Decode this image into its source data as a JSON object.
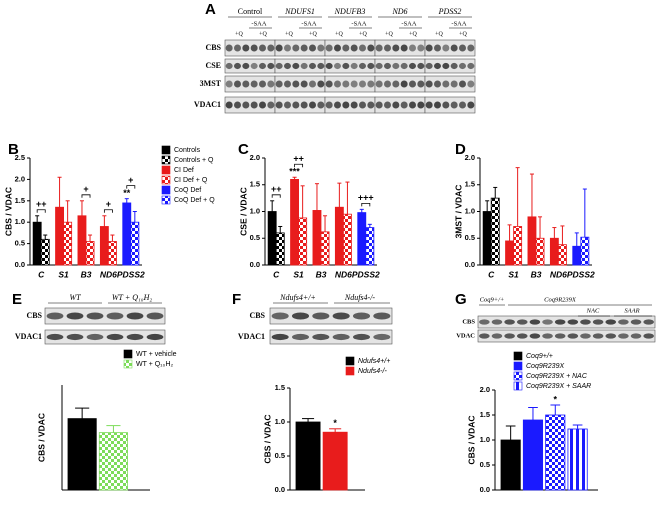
{
  "blots": {
    "A": {
      "panel": "A",
      "groups": [
        {
          "name": "Control",
          "color": "#000000"
        },
        {
          "name": "NDUFS1",
          "color": "#e00000"
        },
        {
          "name": "NDUFB3",
          "color": "#e00000"
        },
        {
          "name": "ND6",
          "color": "#e00000"
        },
        {
          "name": "PDSS2",
          "color": "#1a1aff"
        }
      ],
      "treatment": "-SAA",
      "supplement": "+Q",
      "rows": [
        "CBS",
        "CSE",
        "3MST",
        "VDAC1"
      ]
    },
    "E": {
      "headers": [
        {
          "name": "WT",
          "color": "#3a7a1a"
        },
        {
          "name": "WT + Q₁₀H₂",
          "color": "#3a9a1a"
        }
      ],
      "rows": [
        "CBS",
        "VDAC1"
      ]
    },
    "F": {
      "headers": [
        {
          "name": "Ndufs4+/+",
          "color": "#000000"
        },
        {
          "name": "Ndufs4-/-",
          "color": "#e00000"
        }
      ],
      "rows": [
        "CBS",
        "VDAC1"
      ]
    },
    "G": {
      "headers": [
        {
          "name": "Coq9+/+",
          "color": "#000000"
        },
        {
          "name": "Coq9R239X",
          "color": "#1a1aff"
        },
        {
          "name": "NAC",
          "color": "#000000"
        },
        {
          "name": "SAAR",
          "color": "#000000"
        }
      ],
      "rows": [
        "CBS",
        "VDAC"
      ]
    }
  },
  "chart_data": [
    {
      "panel": "B",
      "type": "bar",
      "y_label": "CBS / VDAC",
      "categories": [
        "C",
        "S1",
        "B3",
        "ND6",
        "PDSS2"
      ],
      "series": [
        {
          "name": "Controls",
          "color": "#000000",
          "pattern": "solid",
          "values": [
            1.0,
            null,
            null,
            null,
            null
          ],
          "errors": [
            0.15,
            null,
            null,
            null,
            null
          ]
        },
        {
          "name": "Controls + Q",
          "color": "#000000",
          "pattern": "checker",
          "values": [
            0.6,
            null,
            null,
            null,
            null
          ],
          "errors": [
            0.1,
            null,
            null,
            null,
            null
          ]
        },
        {
          "name": "CI Def",
          "color": "#e81c1c",
          "pattern": "solid",
          "values": [
            null,
            1.35,
            1.15,
            0.9,
            null
          ],
          "errors": [
            null,
            0.7,
            0.35,
            0.25,
            null
          ]
        },
        {
          "name": "CI Def + Q",
          "color": "#e81c1c",
          "pattern": "checker",
          "values": [
            null,
            1.0,
            0.55,
            0.55,
            null
          ],
          "errors": [
            null,
            0.5,
            0.15,
            0.15,
            null
          ]
        },
        {
          "name": "CoQ Def",
          "color": "#1a1aff",
          "pattern": "solid",
          "values": [
            null,
            null,
            null,
            null,
            1.45
          ],
          "errors": [
            null,
            null,
            null,
            null,
            0.1
          ]
        },
        {
          "name": "CoQ Def + Q",
          "color": "#1a1aff",
          "pattern": "checker",
          "values": [
            null,
            null,
            null,
            null,
            1.0
          ],
          "errors": [
            null,
            null,
            null,
            null,
            0.25
          ]
        }
      ],
      "ylim": [
        0,
        2.5
      ],
      "yticks": [
        {
          "value": 0,
          "label": "0.0"
        },
        {
          "value": 0.5,
          "label": "0.5"
        },
        {
          "value": 1,
          "label": "1.0"
        },
        {
          "value": 1.5,
          "label": "1.5"
        },
        {
          "value": 2,
          "label": "2.0"
        },
        {
          "value": 2.5,
          "label": "2.5"
        }
      ],
      "annotations": [
        "++",
        "+",
        "+",
        "**",
        "+"
      ]
    },
    {
      "panel": "C",
      "type": "bar",
      "y_label": "CSE / VDAC",
      "categories": [
        "C",
        "S1",
        "B3",
        "ND6",
        "PDSS2"
      ],
      "series": [
        {
          "color": "#000000",
          "pattern": "solid",
          "values": [
            1.0,
            null,
            null,
            null,
            null
          ],
          "errors": [
            0.2,
            null,
            null,
            null,
            null
          ]
        },
        {
          "color": "#000000",
          "pattern": "checker",
          "values": [
            0.6,
            null,
            null,
            null,
            null
          ],
          "errors": [
            0.12,
            null,
            null,
            null,
            null
          ]
        },
        {
          "color": "#e81c1c",
          "pattern": "solid",
          "values": [
            null,
            1.6,
            1.02,
            1.08,
            null
          ],
          "errors": [
            null,
            0.04,
            0.5,
            0.45,
            null
          ]
        },
        {
          "color": "#e81c1c",
          "pattern": "checker",
          "values": [
            null,
            0.88,
            0.62,
            0.95,
            null
          ],
          "errors": [
            null,
            0.6,
            0.3,
            0.6,
            null
          ]
        },
        {
          "color": "#1a1aff",
          "pattern": "solid",
          "values": [
            null,
            null,
            null,
            null,
            0.98
          ],
          "errors": [
            null,
            null,
            null,
            null,
            0.06
          ]
        },
        {
          "color": "#1a1aff",
          "pattern": "checker",
          "values": [
            null,
            null,
            null,
            null,
            0.7
          ],
          "errors": [
            null,
            null,
            null,
            null,
            0.06
          ]
        }
      ],
      "ylim": [
        0,
        2
      ],
      "yticks": [
        {
          "value": 0,
          "label": "0.0"
        },
        {
          "value": 0.5,
          "label": "0.5"
        },
        {
          "value": 1,
          "label": "1.0"
        },
        {
          "value": 1.5,
          "label": "1.5"
        },
        {
          "value": 2,
          "label": "2.0"
        }
      ],
      "annotations": [
        "++",
        "***",
        "++",
        "+++"
      ]
    },
    {
      "panel": "D",
      "type": "bar",
      "y_label": "3MST / VDAC",
      "categories": [
        "C",
        "S1",
        "B3",
        "ND6",
        "PDSS2"
      ],
      "series": [
        {
          "color": "#000000",
          "pattern": "solid",
          "values": [
            1.0,
            null,
            null,
            null,
            null
          ],
          "errors": [
            0.2,
            null,
            null,
            null,
            null
          ]
        },
        {
          "color": "#000000",
          "pattern": "checker",
          "values": [
            1.25,
            null,
            null,
            null,
            null
          ],
          "errors": [
            0.2,
            null,
            null,
            null,
            null
          ]
        },
        {
          "color": "#e81c1c",
          "pattern": "solid",
          "values": [
            null,
            0.45,
            0.9,
            0.5,
            null
          ],
          "errors": [
            null,
            0.3,
            0.8,
            0.2,
            null
          ]
        },
        {
          "color": "#e81c1c",
          "pattern": "checker",
          "values": [
            null,
            0.72,
            0.5,
            0.38,
            null
          ],
          "errors": [
            null,
            1.1,
            0.4,
            0.35,
            null
          ]
        },
        {
          "color": "#1a1aff",
          "pattern": "solid",
          "values": [
            null,
            null,
            null,
            null,
            0.35
          ],
          "errors": [
            null,
            null,
            null,
            null,
            0.25
          ]
        },
        {
          "color": "#1a1aff",
          "pattern": "checker",
          "values": [
            null,
            null,
            null,
            null,
            0.52
          ],
          "errors": [
            null,
            null,
            null,
            null,
            0.9
          ]
        }
      ],
      "ylim": [
        0,
        2
      ],
      "yticks": [
        {
          "value": 0,
          "label": "0.0"
        },
        {
          "value": 0.5,
          "label": "0.5"
        },
        {
          "value": 1,
          "label": "1.0"
        },
        {
          "value": 1.5,
          "label": "1.5"
        },
        {
          "value": 2,
          "label": "2.0"
        }
      ]
    },
    {
      "panel": "E",
      "type": "bar",
      "y_label": "CBS / VDAC",
      "series": [
        {
          "name": "WT + vehicle",
          "color": "#000000",
          "pattern": "solid",
          "values": [
            1.02
          ],
          "errors": [
            0.15
          ]
        },
        {
          "name": "WT + Q₁₀H₂",
          "color": "#7ddc5a",
          "pattern": "checker",
          "values": [
            0.82
          ],
          "errors": [
            0.1
          ]
        }
      ],
      "ylim": [
        0,
        1.5
      ]
    },
    {
      "panel": "F",
      "type": "bar",
      "y_label": "CBS / VDAC",
      "series": [
        {
          "name": "Ndufs4+/+",
          "color": "#000000",
          "pattern": "solid",
          "values": [
            1.0
          ],
          "errors": [
            0.05
          ]
        },
        {
          "name": "Ndufs4-/-",
          "color": "#e81c1c",
          "pattern": "solid",
          "values": [
            0.85
          ],
          "errors": [
            0.05
          ]
        }
      ],
      "ylim": [
        0,
        1.5
      ],
      "yticks": [
        {
          "value": 0,
          "label": "0.0"
        },
        {
          "value": 0.5,
          "label": "0.5"
        },
        {
          "value": 1,
          "label": "1.0"
        },
        {
          "value": 1.5,
          "label": "1.5"
        }
      ],
      "annotations": [
        "*"
      ]
    },
    {
      "panel": "G",
      "type": "bar",
      "y_label": "CBS / VDAC",
      "series": [
        {
          "name": "Coq9+/+",
          "color": "#000000",
          "pattern": "solid",
          "values": [
            1.0
          ],
          "errors": [
            0.28
          ]
        },
        {
          "name": "Coq9R239X",
          "color": "#1a1aff",
          "pattern": "solid",
          "values": [
            1.4
          ],
          "errors": [
            0.25
          ]
        },
        {
          "name": "Coq9R239X + NAC",
          "color": "#1a1aff",
          "pattern": "checker",
          "values": [
            1.5
          ],
          "errors": [
            0.2
          ]
        },
        {
          "name": "Coq9R239X + SAAR",
          "color": "#1a1aff",
          "pattern": "stripe",
          "values": [
            1.22
          ],
          "errors": [
            0.08
          ]
        }
      ],
      "ylim": [
        0,
        2
      ],
      "yticks": [
        {
          "value": 0,
          "label": "0.0"
        },
        {
          "value": 0.5,
          "label": "0.5"
        },
        {
          "value": 1,
          "label": "1.0"
        },
        {
          "value": 1.5,
          "label": "1.5"
        },
        {
          "value": 2,
          "label": "2.0"
        }
      ],
      "annotations": [
        "*"
      ]
    }
  ]
}
